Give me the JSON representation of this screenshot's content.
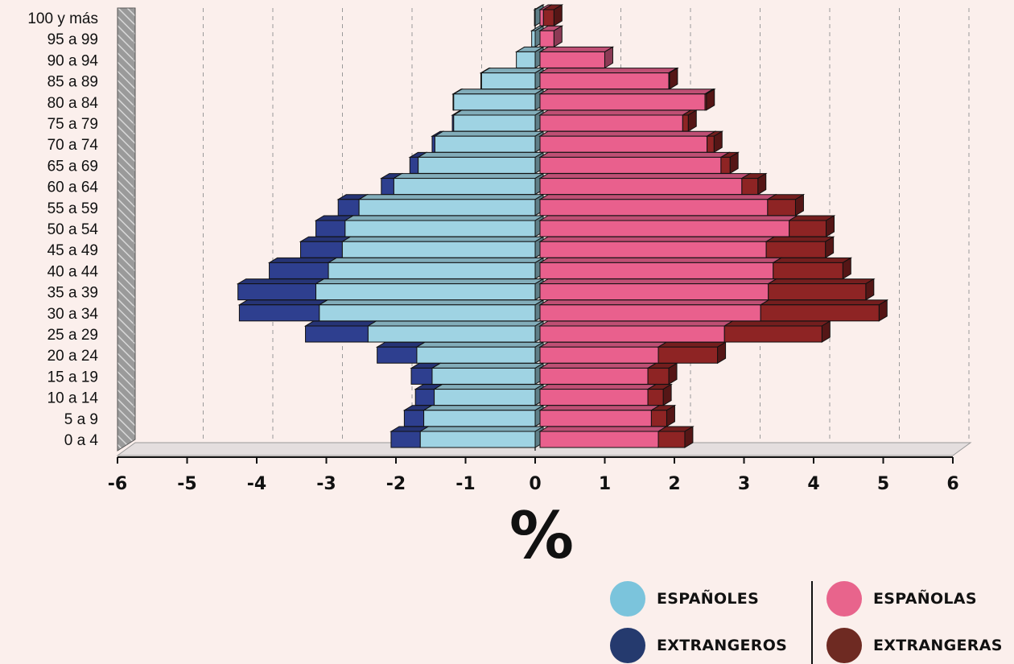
{
  "chart_data": {
    "type": "bar",
    "orientation": "horizontal",
    "layout": "population-pyramid",
    "categories": [
      "0 a 4",
      "5 a 9",
      "10 a 14",
      "15 a 19",
      "20 a 24",
      "25 a 29",
      "30 a 34",
      "35 a 39",
      "40 a 44",
      "45 a 49",
      "50 a 54",
      "55 a 59",
      "60 a 64",
      "65 a 69",
      "70 a 74",
      "75 a 79",
      "80 a 84",
      "85 a 89",
      "90 a 94",
      "95 a 99",
      "100 y más"
    ],
    "series": [
      {
        "name": "ESPAÑOLES",
        "side": "left",
        "color": "#9fd3e3",
        "values": [
          1.65,
          1.6,
          1.45,
          1.48,
          1.7,
          2.4,
          3.1,
          3.15,
          2.97,
          2.77,
          2.73,
          2.53,
          2.03,
          1.68,
          1.44,
          1.17,
          1.17,
          0.77,
          0.27,
          0.05,
          0.01
        ]
      },
      {
        "name": "EXTRANGEROS",
        "side": "left",
        "color": "#2e3f8f",
        "values": [
          0.42,
          0.28,
          0.27,
          0.3,
          0.57,
          0.9,
          1.15,
          1.12,
          0.85,
          0.6,
          0.42,
          0.3,
          0.18,
          0.12,
          0.04,
          0.02,
          0.01,
          0.01,
          0.0,
          0.0,
          0.0
        ]
      },
      {
        "name": "ESPAÑOLAS",
        "side": "right",
        "color": "#e9608d",
        "values": [
          1.7,
          1.6,
          1.55,
          1.55,
          1.7,
          2.65,
          3.17,
          3.28,
          3.35,
          3.25,
          3.58,
          3.27,
          2.9,
          2.6,
          2.4,
          2.05,
          2.37,
          1.85,
          0.93,
          0.2,
          0.05
        ]
      },
      {
        "name": "EXTRANGERAS",
        "side": "right",
        "color": "#8e2424",
        "values": [
          0.38,
          0.22,
          0.22,
          0.3,
          0.85,
          1.4,
          1.7,
          1.4,
          1.0,
          0.85,
          0.53,
          0.4,
          0.23,
          0.13,
          0.1,
          0.08,
          0.02,
          0.01,
          0.0,
          0.0,
          0.15
        ]
      }
    ],
    "xlabel": "%",
    "xlim": [
      -6,
      6
    ],
    "xticks": [
      "-6",
      "-5",
      "-4",
      "-3",
      "-2",
      "-1",
      "0",
      "1",
      "2",
      "3",
      "4",
      "5",
      "6"
    ],
    "grid": "dashed vertical",
    "legend": {
      "position": "bottom-right",
      "items": [
        {
          "label": "ESPAÑOLES",
          "color": "#7bc4dc"
        },
        {
          "label": "EXTRANGEROS",
          "color": "#253a6e"
        },
        {
          "label": "ESPAÑOLAS",
          "color": "#e8648c"
        },
        {
          "label": "EXTRANGERAS",
          "color": "#6e2a22"
        }
      ]
    }
  }
}
